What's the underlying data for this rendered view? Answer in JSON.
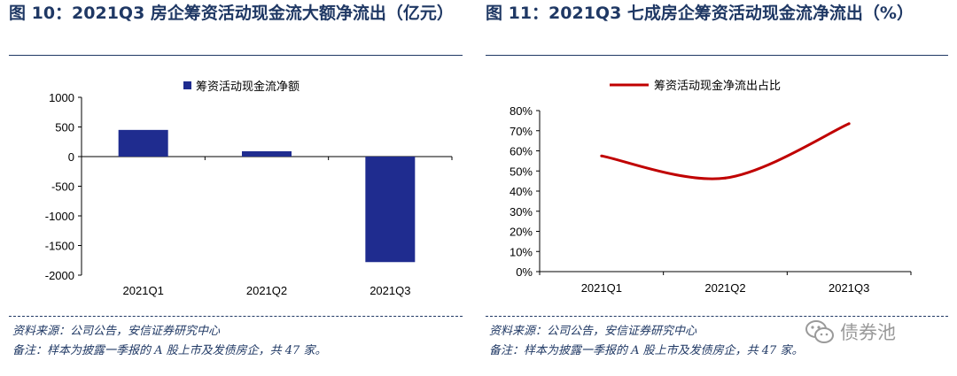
{
  "figures": [
    {
      "title": "图 10：2021Q3 房企筹资活动现金流大额净流出（亿元）",
      "source": "资料来源：公司公告，安信证券研究中心",
      "remark": "备注：样本为披露一季报的 A 股上市及发债房企，共 47 家。"
    },
    {
      "title": "图 11：2021Q3 七成房企筹资活动现金流净流出（%）",
      "source": "资料来源：公司公告，安信证券研究中心",
      "remark": "备注：样本为披露一季报的 A 股上市及发债房企，共 47 家。"
    }
  ],
  "watermark": {
    "text": "债券池",
    "icon": "wechat-icon"
  },
  "colors": {
    "bar": "#1f2c8f",
    "line": "#c00000",
    "title": "#1f3864"
  },
  "chart_data": [
    {
      "type": "bar",
      "title": "",
      "categories": [
        "2021Q1",
        "2021Q2",
        "2021Q3"
      ],
      "series": [
        {
          "name": "筹资活动现金流净额",
          "values": [
            450,
            90,
            -1780
          ]
        }
      ],
      "ylim": [
        -2000,
        1000
      ],
      "yticks": [
        1000,
        500,
        0,
        -500,
        -1000,
        -1500,
        -2000
      ],
      "ytick_labels": [
        "1000",
        "500",
        "0",
        "-500",
        "-1000",
        "-1500",
        "-2000"
      ],
      "xlabel": "",
      "ylabel": "",
      "legend": "top-center"
    },
    {
      "type": "line",
      "title": "",
      "categories": [
        "2021Q1",
        "2021Q2",
        "2021Q3"
      ],
      "series": [
        {
          "name": "筹资活动现金净流出占比",
          "values": [
            57.5,
            46.5,
            73.5
          ]
        }
      ],
      "ylim": [
        0,
        80
      ],
      "yticks": [
        80,
        70,
        60,
        50,
        40,
        30,
        20,
        10,
        0
      ],
      "ytick_labels": [
        "80%",
        "70%",
        "60%",
        "50%",
        "40%",
        "30%",
        "20%",
        "10%",
        "0%"
      ],
      "xlabel": "",
      "ylabel": "",
      "legend": "top-center"
    }
  ]
}
